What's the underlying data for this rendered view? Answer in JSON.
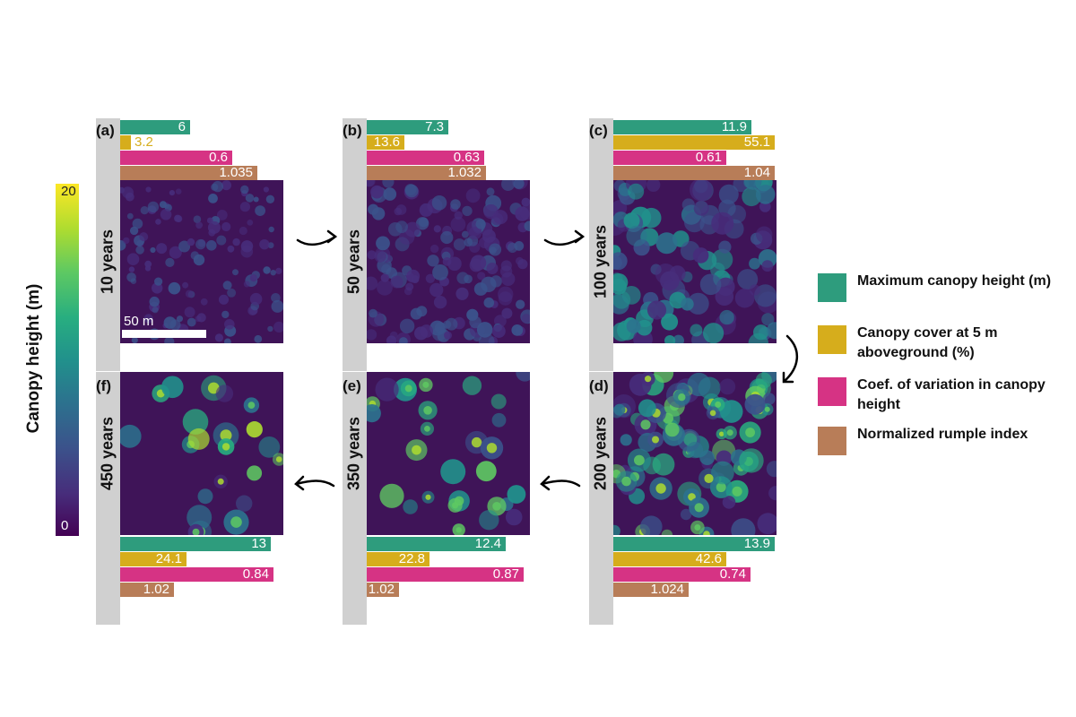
{
  "colors": {
    "max_height": "#2e9c7d",
    "canopy_cover": "#d6ad1c",
    "coef_var": "#d63384",
    "rumple": "#b87d58",
    "strip": "#d0d0d0"
  },
  "colorbar": {
    "title": "Canopy height (m)",
    "max_label": "20",
    "min_label": "0"
  },
  "scale_label": "50 m",
  "legend": [
    {
      "label": "Maximum canopy height (m)",
      "color": "#2e9c7d"
    },
    {
      "label": "Canopy cover at 5 m aboveground (%)",
      "color": "#d6ad1c"
    },
    {
      "label": "Coef. of variation in canopy height",
      "color": "#d63384"
    },
    {
      "label": "Normalized rumple index",
      "color": "#b87d58"
    }
  ],
  "panels": [
    {
      "letter": "(a)",
      "years": "10 years",
      "max_height": "6",
      "canopy_cover": "3.2",
      "coef_var": "0.6",
      "rumple": "1.035"
    },
    {
      "letter": "(b)",
      "years": "50 years",
      "max_height": "7.3",
      "canopy_cover": "13.6",
      "coef_var": "0.63",
      "rumple": "1.032"
    },
    {
      "letter": "(c)",
      "years": "100 years",
      "max_height": "11.9",
      "canopy_cover": "55.1",
      "coef_var": "0.61",
      "rumple": "1.04"
    },
    {
      "letter": "(d)",
      "years": "200 years",
      "max_height": "13.9",
      "canopy_cover": "42.6",
      "coef_var": "0.74",
      "rumple": "1.024"
    },
    {
      "letter": "(e)",
      "years": "350 years",
      "max_height": "12.4",
      "canopy_cover": "22.8",
      "coef_var": "0.87",
      "rumple": "1.02"
    },
    {
      "letter": "(f)",
      "years": "450 years",
      "max_height": "13",
      "canopy_cover": "24.1",
      "coef_var": "0.84",
      "rumple": "1.02"
    }
  ]
}
